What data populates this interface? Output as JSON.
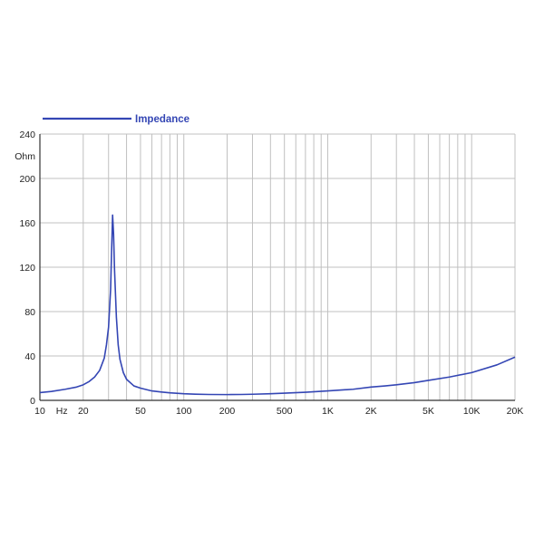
{
  "chart_data": {
    "type": "line",
    "title": "",
    "xlabel": "",
    "ylabel": "",
    "x_scale": "log",
    "xlim": [
      10,
      20000
    ],
    "ylim": [
      0,
      240
    ],
    "y_unit": "Ohm",
    "x_unit": "Hz",
    "grid": true,
    "legend_position": "top-left",
    "colors": {
      "series": "#3446b4",
      "grid": "#c0c0c0",
      "axis": "#333333"
    },
    "y_ticks": [
      {
        "value": 0,
        "label": "0"
      },
      {
        "value": 40,
        "label": "40"
      },
      {
        "value": 80,
        "label": "80"
      },
      {
        "value": 120,
        "label": "120"
      },
      {
        "value": 160,
        "label": "160"
      },
      {
        "value": 200,
        "label": "200"
      },
      {
        "value": 240,
        "label": "240"
      }
    ],
    "x_ticks": [
      {
        "value": 10,
        "label": "10"
      },
      {
        "value": 20,
        "label": "20"
      },
      {
        "value": 50,
        "label": "50"
      },
      {
        "value": 100,
        "label": "100"
      },
      {
        "value": 200,
        "label": "200"
      },
      {
        "value": 500,
        "label": "500"
      },
      {
        "value": 1000,
        "label": "1K"
      },
      {
        "value": 2000,
        "label": "2K"
      },
      {
        "value": 5000,
        "label": "5K"
      },
      {
        "value": 10000,
        "label": "10K"
      },
      {
        "value": 20000,
        "label": "20K"
      }
    ],
    "series": [
      {
        "name": "Impedance",
        "x": [
          10,
          12,
          15,
          18,
          20,
          22,
          24,
          26,
          28,
          29,
          30,
          31,
          31.5,
          32,
          32.5,
          33,
          34,
          35,
          36,
          38,
          40,
          45,
          50,
          60,
          70,
          80,
          100,
          120,
          150,
          200,
          250,
          300,
          400,
          500,
          700,
          1000,
          1500,
          2000,
          2500,
          3000,
          4000,
          5000,
          7000,
          10000,
          15000,
          20000
        ],
        "y": [
          7,
          8,
          10,
          12,
          14,
          17,
          21,
          27,
          38,
          50,
          66,
          100,
          135,
          167,
          150,
          118,
          75,
          50,
          37,
          25,
          19,
          13,
          11,
          8.5,
          7.5,
          6.8,
          6,
          5.6,
          5.3,
          5.2,
          5.3,
          5.5,
          6,
          6.5,
          7.3,
          8.5,
          10,
          12,
          13,
          14,
          16,
          18,
          21,
          25,
          32,
          39
        ]
      }
    ]
  }
}
